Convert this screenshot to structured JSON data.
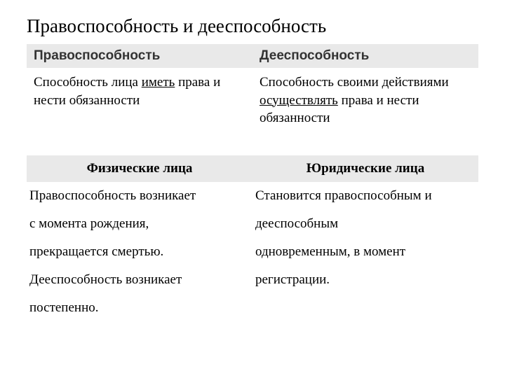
{
  "title": "Правоспособность и дееспособность",
  "table1": {
    "header_bg": "#e9e9e9",
    "columns": [
      "Правоспособность",
      "Дееспособность"
    ],
    "cells": {
      "left_pre": "Способность лица ",
      "left_u": "иметь",
      "left_post": " права и нести обязанности",
      "right_pre": "Способность своими действиями ",
      "right_u": "осуществлять",
      "right_post": " права и нести обязанности"
    }
  },
  "table2": {
    "header_bg": "#e9e9e9",
    "columns": [
      "Физические лица",
      "Юридические лица"
    ],
    "rows": [
      [
        "Правоспособность возникает",
        "Становится правоспособным и"
      ],
      [
        "с момента рождения,",
        "дееспособным"
      ],
      [
        "прекращается смертью.",
        "одновременным, в момент"
      ],
      [
        "Дееспособность возникает",
        "регистрации."
      ],
      [
        "постепенно.",
        ""
      ]
    ]
  }
}
